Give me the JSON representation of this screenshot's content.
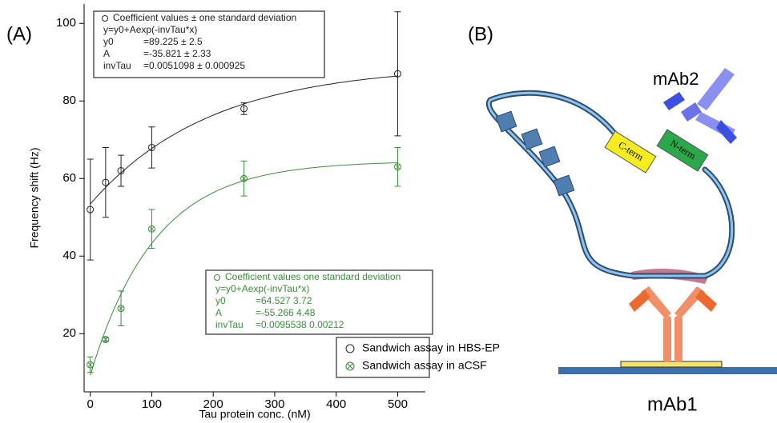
{
  "chart_data": {
    "type": "scatter",
    "panel_label": "(A)",
    "x_label": "Tau protein conc. (nM)",
    "y_label": "Frequency shift (Hz)",
    "xlim": [
      -10,
      545
    ],
    "ylim": [
      5,
      105
    ],
    "xticks": [
      0,
      100,
      200,
      300,
      400,
      500
    ],
    "yticks": [
      20,
      40,
      60,
      80,
      100
    ],
    "series": [
      {
        "name": "Sandwich assay in HBS-EP",
        "color": "#222222",
        "marker": "circle",
        "x": [
          0,
          25,
          50,
          100,
          250,
          500
        ],
        "values": [
          52,
          59,
          62,
          68,
          78,
          87
        ],
        "errors": [
          13,
          9,
          4,
          5.3,
          1.5,
          16
        ],
        "fit": {
          "y0": 89.225,
          "A": -35.821,
          "invTau": 0.0051098
        },
        "fit_box": {
          "heading": "Coefficient values ± one standard deviation",
          "equation": "y=y0+Aexp(-invTau*x)",
          "rows": [
            [
              "y0",
              "=89.225 ± 2.5"
            ],
            [
              "A",
              "=-35.821 ± 2.33"
            ],
            [
              "invTau",
              "=0.0051098 ± 0.000925"
            ]
          ]
        }
      },
      {
        "name": "Sandwich assay in aCSF",
        "color": "#3c8c3c",
        "marker": "circle-x",
        "x": [
          0,
          25,
          50,
          100,
          250,
          500
        ],
        "values": [
          12,
          18.5,
          26.5,
          47,
          60,
          63
        ],
        "errors": [
          2,
          0.5,
          4.5,
          5,
          4.5,
          5
        ],
        "fit": {
          "y0": 64.527,
          "A": -55.266,
          "invTau": 0.0095538
        },
        "fit_box": {
          "heading": "Coefficient values  one standard deviation",
          "equation": "y=y0+Aexp(-invTau*x)",
          "rows": [
            [
              "y0",
              "=64.527  3.72"
            ],
            [
              "A",
              "=-55.266  4.48"
            ],
            [
              "invTau",
              "=0.0095538  0.00212"
            ]
          ]
        }
      }
    ]
  },
  "diagram": {
    "panel_label": "(B)",
    "labels": {
      "mab2": "mAb2",
      "mab1": "mAb1",
      "c_term": "C-term",
      "n_term": "N-term"
    }
  }
}
